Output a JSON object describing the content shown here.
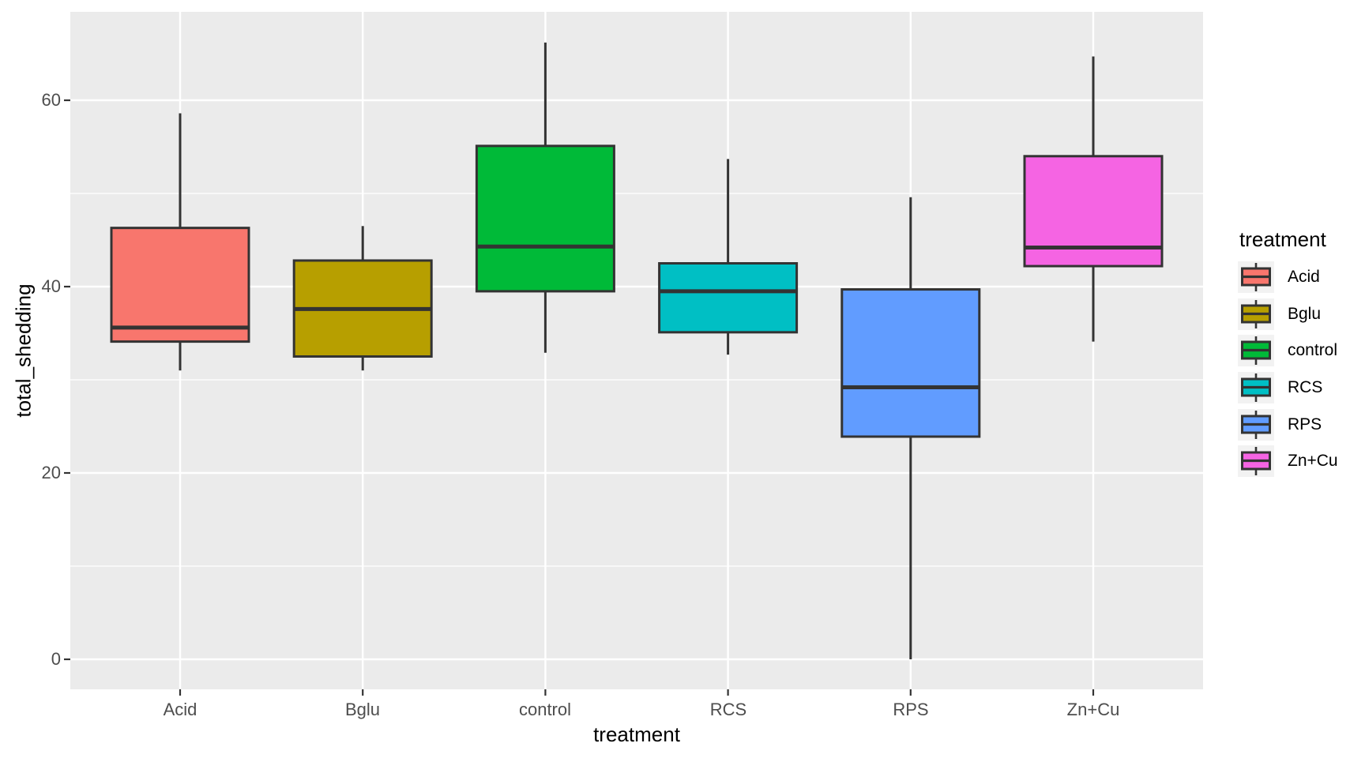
{
  "chart_data": {
    "type": "boxplot",
    "xlabel": "treatment",
    "ylabel": "total_shedding",
    "categories": [
      "Acid",
      "Bglu",
      "control",
      "RCS",
      "RPS",
      "Zn+Cu"
    ],
    "series": [
      {
        "name": "Acid",
        "color": "#F8766D",
        "min": 31.0,
        "q1": 34.1,
        "median": 35.6,
        "q3": 46.3,
        "max": 58.6
      },
      {
        "name": "Bglu",
        "color": "#B79F00",
        "min": 31.0,
        "q1": 32.5,
        "median": 37.6,
        "q3": 42.8,
        "max": 46.5
      },
      {
        "name": "control",
        "color": "#00BA38",
        "min": 32.9,
        "q1": 39.5,
        "median": 44.3,
        "q3": 55.1,
        "max": 66.2
      },
      {
        "name": "RCS",
        "color": "#00BFC4",
        "min": 32.7,
        "q1": 35.1,
        "median": 39.5,
        "q3": 42.5,
        "max": 53.7
      },
      {
        "name": "RPS",
        "color": "#619CFF",
        "min": 0.0,
        "q1": 23.9,
        "median": 29.2,
        "q3": 39.7,
        "max": 49.6
      },
      {
        "name": "Zn+Cu",
        "color": "#F564E3",
        "min": 34.1,
        "q1": 42.2,
        "median": 44.2,
        "q3": 54.0,
        "max": 64.7
      }
    ],
    "y_ticks": [
      {
        "label": "0",
        "value": 0
      },
      {
        "label": "20",
        "value": 20
      },
      {
        "label": "40",
        "value": 40
      },
      {
        "label": "60",
        "value": 60
      }
    ],
    "y_minor": [
      10,
      30,
      50
    ],
    "ylim": [
      -3.2,
      69.5
    ],
    "grid": true,
    "legend": {
      "title": "treatment",
      "position": "right"
    },
    "panel_bg": "#EBEBEB",
    "grid_color": "#FFFFFF",
    "box_stroke": "#333333",
    "tick_color": "#333333",
    "tick_label_color": "#4D4D4D",
    "legend_key_bg": "#F2F2F2"
  }
}
